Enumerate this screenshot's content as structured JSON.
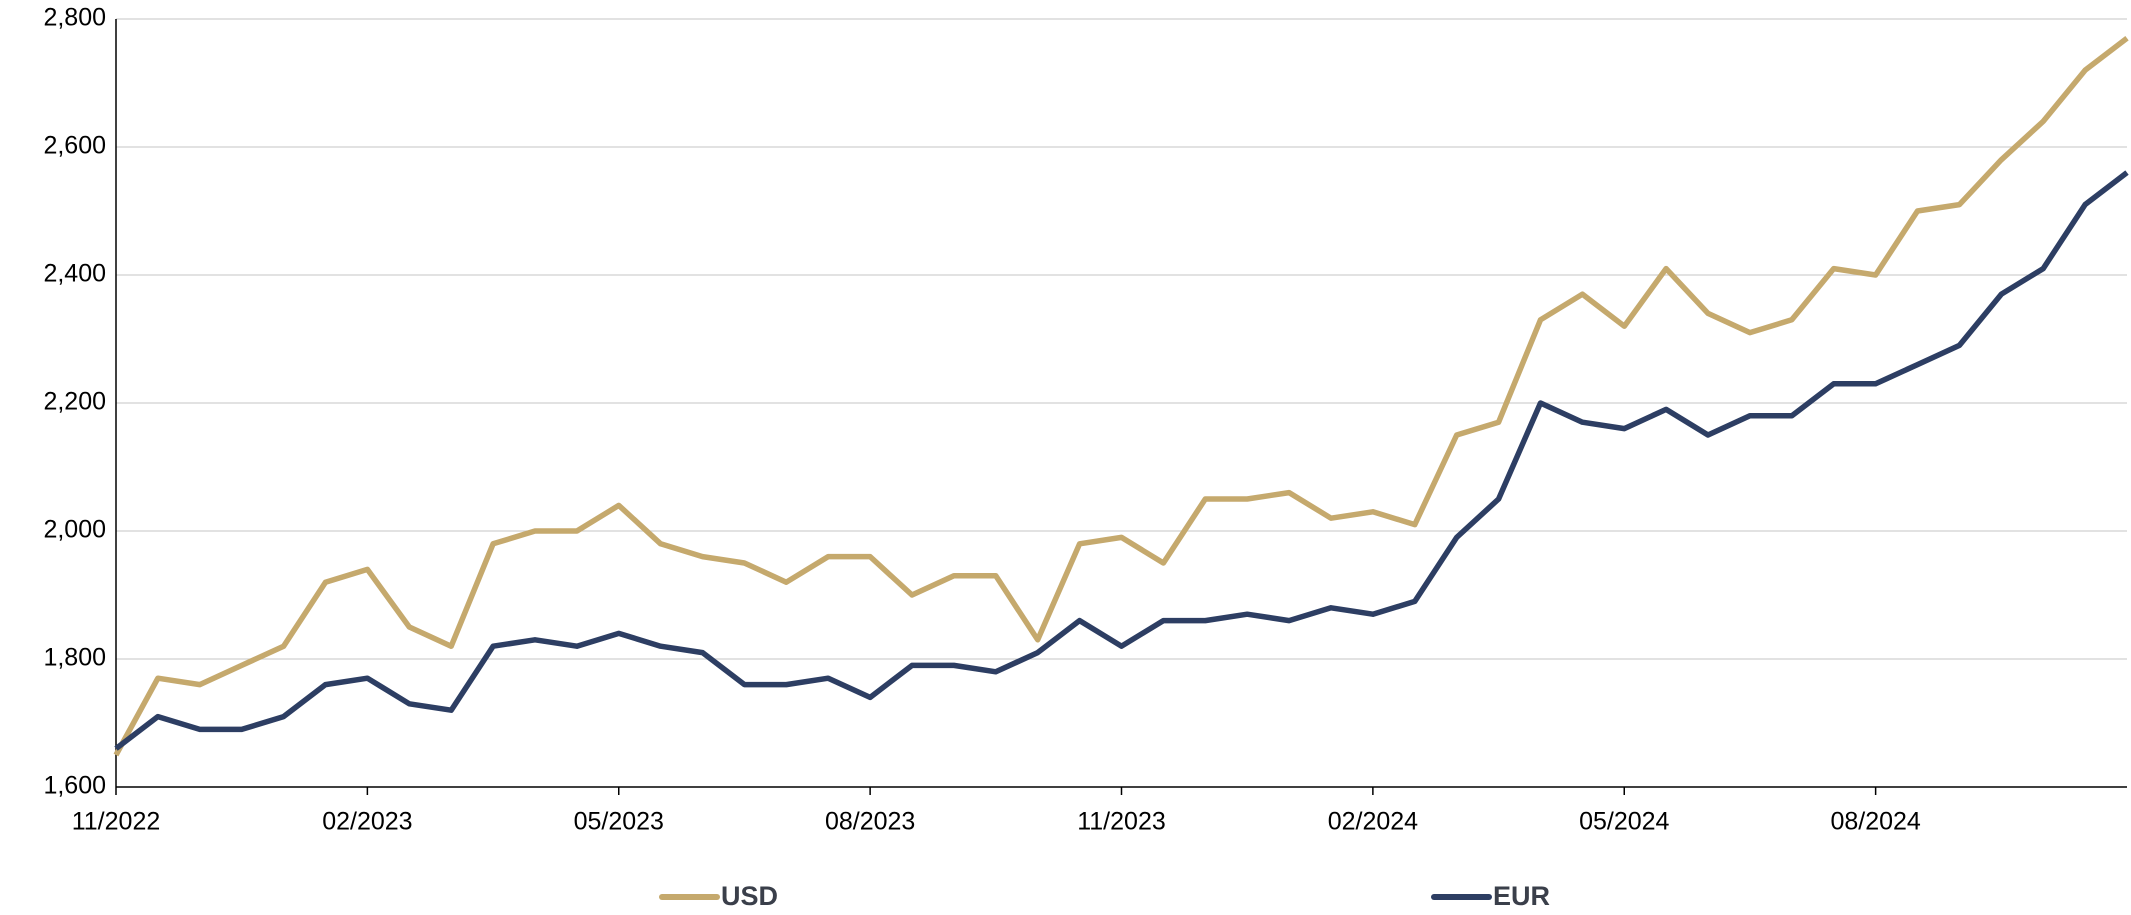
{
  "chart_data": {
    "type": "line",
    "categories": [
      "11/2022",
      null,
      null,
      null,
      null,
      null,
      "02/2023",
      null,
      null,
      null,
      null,
      null,
      "05/2023",
      null,
      null,
      null,
      null,
      null,
      "08/2023",
      null,
      null,
      null,
      null,
      null,
      "11/2023",
      null,
      null,
      null,
      null,
      null,
      "02/2024",
      null,
      null,
      null,
      null,
      null,
      "05/2024",
      null,
      null,
      null,
      null,
      null,
      "08/2024",
      null,
      null,
      null,
      null,
      null,
      null
    ],
    "series": [
      {
        "name": "USD",
        "color": "#c5a96d",
        "values": [
          1650,
          1770,
          1760,
          1790,
          1820,
          1920,
          1940,
          1850,
          1820,
          1980,
          2000,
          2000,
          2040,
          1980,
          1960,
          1950,
          1920,
          1960,
          1960,
          1900,
          1930,
          1930,
          1830,
          1980,
          1990,
          1950,
          2050,
          2050,
          2060,
          2020,
          2030,
          2010,
          2150,
          2170,
          2330,
          2370,
          2320,
          2410,
          2340,
          2310,
          2330,
          2410,
          2400,
          2500,
          2510,
          2580,
          2640,
          2720,
          2770
        ]
      },
      {
        "name": "EUR",
        "color": "#2d3e63",
        "values": [
          1660,
          1710,
          1690,
          1690,
          1710,
          1760,
          1770,
          1730,
          1720,
          1820,
          1830,
          1820,
          1840,
          1820,
          1810,
          1760,
          1760,
          1770,
          1740,
          1790,
          1790,
          1780,
          1810,
          1860,
          1820,
          1860,
          1860,
          1870,
          1860,
          1880,
          1870,
          1890,
          1990,
          2050,
          2200,
          2170,
          2160,
          2190,
          2150,
          2180,
          2180,
          2230,
          2230,
          2260,
          2290,
          2370,
          2410,
          2510,
          2560
        ]
      }
    ],
    "ylim": [
      1600,
      2800
    ],
    "yticks": [
      {
        "value": 1600,
        "label": "1,600"
      },
      {
        "value": 1800,
        "label": "1,800"
      },
      {
        "value": 2000,
        "label": "2,000"
      },
      {
        "value": 2200,
        "label": "2,200"
      },
      {
        "value": 2400,
        "label": "2,400"
      },
      {
        "value": 2600,
        "label": "2,600"
      },
      {
        "value": 2800,
        "label": "2,800"
      }
    ],
    "grid": true,
    "legend": "bottom"
  }
}
